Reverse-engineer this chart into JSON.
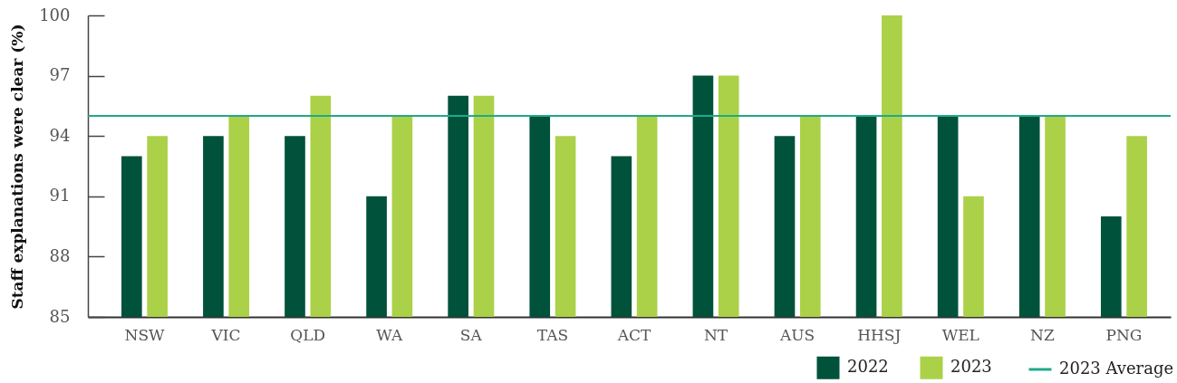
{
  "chart_data": {
    "type": "bar",
    "ylabel": "Staff explanations were clear (%)",
    "categories": [
      "NSW",
      "VIC",
      "QLD",
      "WA",
      "SA",
      "TAS",
      "ACT",
      "NT",
      "AUS",
      "HHSJ",
      "WEL",
      "NZ",
      "PNG"
    ],
    "series": [
      {
        "name": "2022",
        "color": "#00523b",
        "values": [
          93,
          94,
          94,
          91,
          96,
          95,
          93,
          97,
          94,
          95,
          95,
          95,
          90
        ]
      },
      {
        "name": "2023",
        "color": "#abd149",
        "values": [
          94,
          95,
          96,
          95,
          96,
          94,
          95,
          97,
          95,
          100,
          91,
          95,
          94
        ]
      }
    ],
    "ylim": [
      85,
      100
    ],
    "yticks": [
      85,
      88,
      91,
      94,
      97,
      100
    ],
    "ref_lines": [
      {
        "axis": "y",
        "value": 95,
        "label": "2023 Average",
        "color": "#1fa98a"
      }
    ],
    "legend": "bottom right"
  }
}
